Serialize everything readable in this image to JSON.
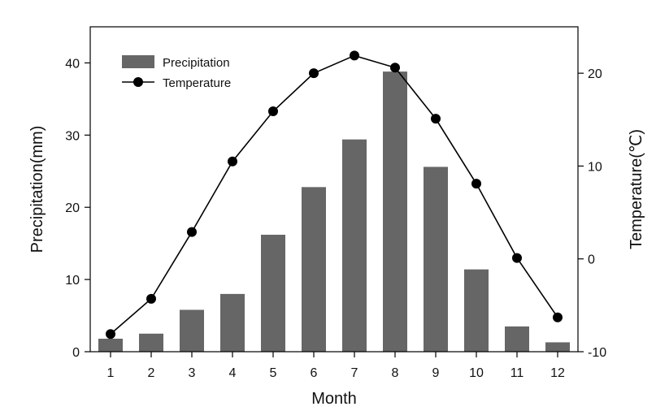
{
  "chart_data": {
    "type": "bar+line",
    "categories": [
      "1",
      "2",
      "3",
      "4",
      "5",
      "6",
      "7",
      "8",
      "9",
      "10",
      "11",
      "12"
    ],
    "series": [
      {
        "name": "Precipitation",
        "kind": "bar",
        "axis": "left",
        "color": "#666666",
        "values": [
          1.8,
          2.5,
          5.8,
          8.0,
          16.2,
          22.8,
          29.4,
          38.8,
          25.6,
          11.4,
          3.5,
          1.3
        ]
      },
      {
        "name": "Temperature",
        "kind": "line",
        "axis": "right",
        "color": "#000000",
        "values": [
          -8.1,
          -4.3,
          2.9,
          10.5,
          15.9,
          20.0,
          21.9,
          20.6,
          15.1,
          8.1,
          0.1,
          -6.3
        ]
      }
    ],
    "xlabel": "Month",
    "ylabel": "Precipitation(mm)",
    "ylabel_right": "Temperature(℃)",
    "ylim": [
      0,
      45
    ],
    "ylim_right": [
      -10,
      25
    ],
    "yticks": [
      "0",
      "10",
      "20",
      "30",
      "40"
    ],
    "yticks_right": [
      "-10",
      "0",
      "10",
      "20"
    ],
    "legend": {
      "position": "top-left",
      "entries": [
        "Precipitation",
        "Temperature"
      ]
    }
  }
}
